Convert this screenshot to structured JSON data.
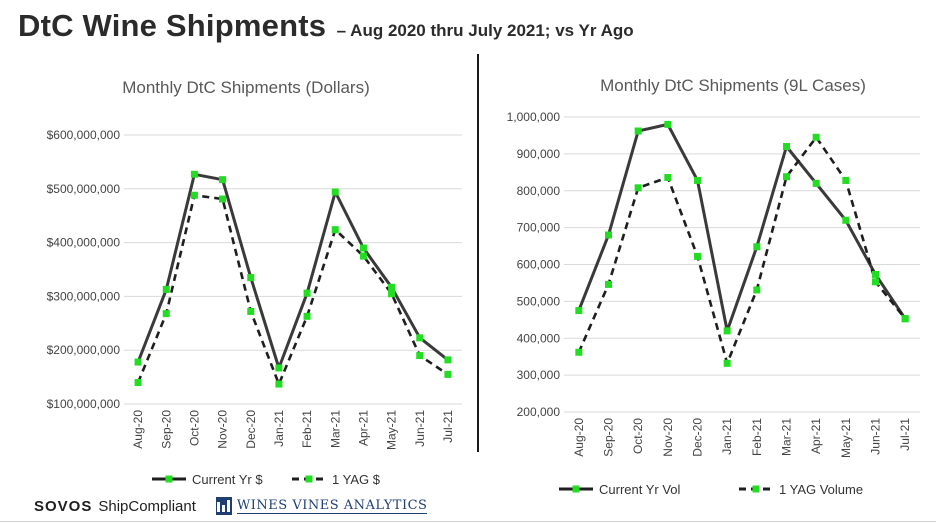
{
  "header": {
    "title": "DtC Wine Shipments",
    "subtitle": "– Aug 2020 thru July 2021; vs Yr Ago"
  },
  "footer": {
    "brand1_bold": "SOVOS",
    "brand1_rest": "ShipCompliant",
    "brand2": "WINES VINES ANALYTICS"
  },
  "colors": {
    "current_line": "#3a3a3a",
    "marker": "#22dd22",
    "axis_text": "#444444",
    "grid": "#d9d9d9"
  },
  "chart_data": [
    {
      "type": "line",
      "title": "Monthly DtC Shipments (Dollars)",
      "categories": [
        "Aug-20",
        "Sep-20",
        "Oct-20",
        "Nov-20",
        "Dec-20",
        "Jan-21",
        "Feb-21",
        "Mar-21",
        "Apr-21",
        "May-21",
        "Jun-21",
        "Jul-21"
      ],
      "ylim": [
        100000000,
        600000000
      ],
      "yticks": [
        100000000,
        200000000,
        300000000,
        400000000,
        500000000,
        600000000
      ],
      "ytick_labels": [
        "$100,000,000",
        "$200,000,000",
        "$300,000,000",
        "$400,000,000",
        "$500,000,000",
        "$600,000,000"
      ],
      "grid": true,
      "legend_position": "bottom",
      "series": [
        {
          "name": "Current Yr $",
          "style": "solid",
          "values": [
            178000000,
            313000000,
            527000000,
            517000000,
            335000000,
            167000000,
            306000000,
            494000000,
            390000000,
            317000000,
            223000000,
            182000000
          ]
        },
        {
          "name": "1 YAG $",
          "style": "dashed",
          "values": [
            140000000,
            268000000,
            488000000,
            481000000,
            272000000,
            137000000,
            263000000,
            424000000,
            375000000,
            305000000,
            190000000,
            155000000
          ]
        }
      ]
    },
    {
      "type": "line",
      "title": "Monthly DtC Shipments (9L Cases)",
      "categories": [
        "Aug-20",
        "Sep-20",
        "Oct-20",
        "Nov-20",
        "Dec-20",
        "Jan-21",
        "Feb-21",
        "Mar-21",
        "Apr-21",
        "May-21",
        "Jun-21",
        "Jul-21"
      ],
      "ylim": [
        200000,
        1000000
      ],
      "yticks": [
        200000,
        300000,
        400000,
        500000,
        600000,
        700000,
        800000,
        900000,
        1000000
      ],
      "ytick_labels": [
        "200,000",
        "300,000",
        "400,000",
        "500,000",
        "600,000",
        "700,000",
        "800,000",
        "900,000",
        "1,000,000"
      ],
      "grid": true,
      "legend_position": "bottom",
      "series": [
        {
          "name": "Current Yr Vol",
          "style": "solid",
          "values": [
            475000,
            680000,
            962000,
            980000,
            828000,
            420000,
            648000,
            920000,
            820000,
            720000,
            573000,
            453000
          ]
        },
        {
          "name": "1 YAG Volume",
          "style": "dashed",
          "values": [
            362000,
            546000,
            808000,
            836000,
            622000,
            332000,
            531000,
            838000,
            945000,
            828000,
            553000,
            453000
          ]
        }
      ]
    }
  ]
}
